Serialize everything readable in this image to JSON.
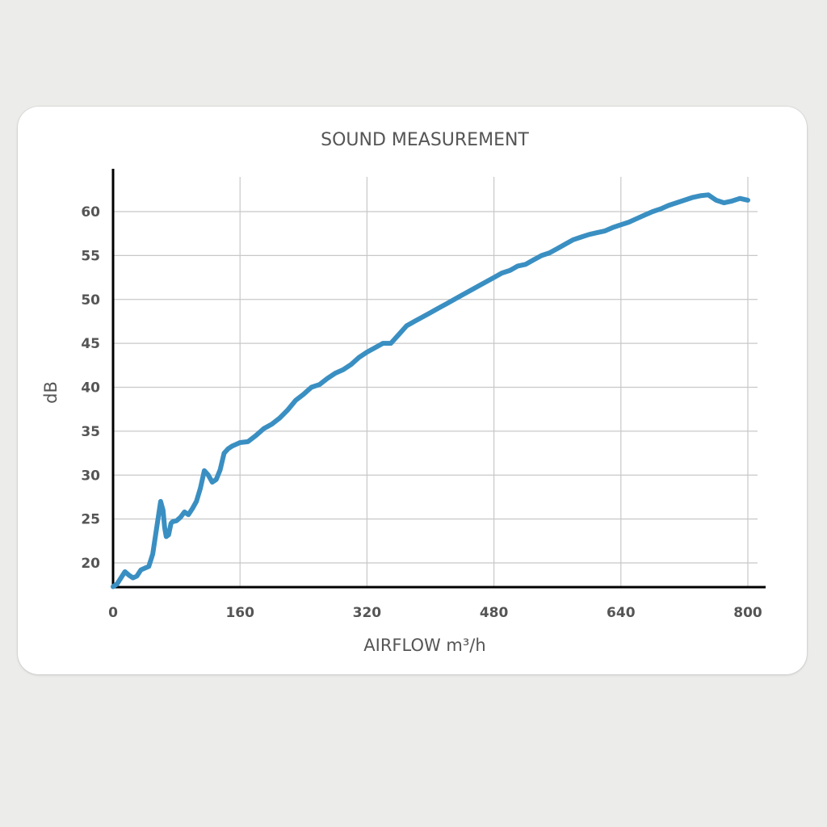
{
  "chart_data": {
    "type": "line",
    "title": "SOUND MEASUREMENT",
    "xlabel": "AIRFLOW m³/h",
    "ylabel": "dB",
    "xlim": [
      0,
      800
    ],
    "ylim": [
      17,
      64
    ],
    "x_ticks": [
      0,
      160,
      320,
      480,
      640,
      800
    ],
    "y_ticks": [
      20,
      25,
      30,
      35,
      40,
      45,
      50,
      55,
      60
    ],
    "grid": true,
    "color": "#3a8fc2",
    "series": [
      {
        "x": [
          0,
          5,
          10,
          15,
          20,
          25,
          30,
          35,
          40,
          45,
          50,
          55,
          60,
          63,
          65,
          67,
          70,
          73,
          75,
          80,
          85,
          90,
          95,
          100,
          105,
          110,
          115,
          120,
          125,
          130,
          135,
          140,
          145,
          150,
          155,
          160,
          170,
          180,
          190,
          200,
          210,
          220,
          230,
          240,
          250,
          260,
          270,
          280,
          290,
          300,
          310,
          320,
          330,
          340,
          350,
          360,
          370,
          380,
          390,
          400,
          410,
          420,
          430,
          440,
          450,
          460,
          470,
          480,
          490,
          500,
          510,
          520,
          530,
          540,
          550,
          560,
          570,
          580,
          590,
          600,
          610,
          620,
          630,
          640,
          650,
          660,
          670,
          680,
          690,
          700,
          710,
          720,
          730,
          740,
          750,
          760,
          770,
          780,
          790,
          800
        ],
        "y": [
          17.3,
          17.6,
          18.3,
          19.0,
          18.6,
          18.3,
          18.5,
          19.2,
          19.4,
          19.6,
          21.0,
          24.0,
          27.0,
          26.0,
          24.0,
          23.0,
          23.2,
          24.5,
          24.7,
          24.8,
          25.2,
          25.8,
          25.5,
          26.2,
          27.0,
          28.5,
          30.5,
          30.0,
          29.2,
          29.5,
          30.6,
          32.5,
          33.0,
          33.3,
          33.5,
          33.7,
          33.8,
          34.5,
          35.3,
          35.8,
          36.5,
          37.4,
          38.5,
          39.2,
          40.0,
          40.3,
          41.0,
          41.6,
          42.0,
          42.6,
          43.4,
          44.0,
          44.5,
          45.0,
          45.0,
          46.0,
          47.0,
          47.5,
          48.0,
          48.5,
          49.0,
          49.5,
          50.0,
          50.5,
          51.0,
          51.5,
          52.0,
          52.5,
          53.0,
          53.3,
          53.8,
          54.0,
          54.5,
          55.0,
          55.3,
          55.8,
          56.3,
          56.8,
          57.1,
          57.4,
          57.6,
          57.8,
          58.2,
          58.5,
          58.8,
          59.2,
          59.6,
          60.0,
          60.3,
          60.7,
          61.0,
          61.3,
          61.6,
          61.8,
          61.9,
          61.3,
          61.0,
          61.2,
          61.5,
          61.3
        ]
      }
    ]
  }
}
